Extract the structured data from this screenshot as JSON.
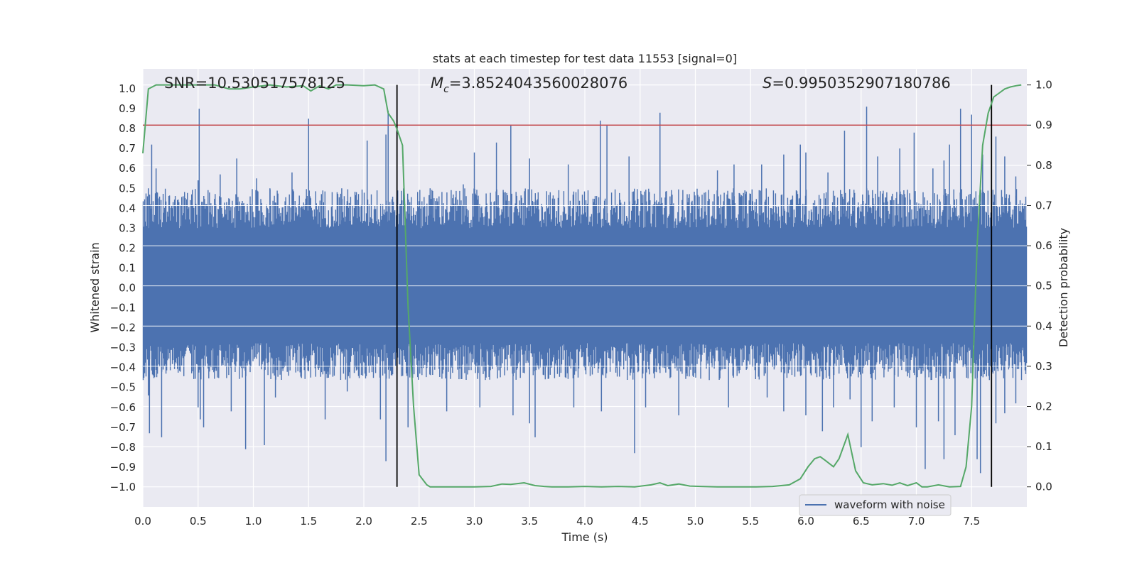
{
  "chart_data": {
    "type": "line",
    "title": "stats at each timestep for test data 11553 [signal=0]",
    "xlabel": "Time (s)",
    "ylabel": "Whitened strain",
    "ylabel_right": "Detection probability",
    "xlim": [
      0.0,
      8.0
    ],
    "ylim": [
      -1.1,
      1.1
    ],
    "ylim_right": [
      -0.05,
      1.04
    ],
    "x_ticks": [
      0.0,
      0.5,
      1.0,
      1.5,
      2.0,
      2.5,
      3.0,
      3.5,
      4.0,
      4.5,
      5.0,
      5.5,
      6.0,
      6.5,
      7.0,
      7.5
    ],
    "x_tick_labels": [
      "0.0",
      "0.5",
      "1.0",
      "1.5",
      "2.0",
      "2.5",
      "3.0",
      "3.5",
      "4.0",
      "4.5",
      "5.0",
      "5.5",
      "6.0",
      "6.5",
      "7.0",
      "7.5"
    ],
    "y_ticks": [
      1.0,
      0.9,
      0.8,
      0.7,
      0.6,
      0.5,
      0.4,
      0.3,
      0.2,
      0.1,
      0.0,
      -0.1,
      -0.2,
      -0.3,
      -0.4,
      -0.5,
      -0.6,
      -0.7,
      -0.8,
      -0.9,
      -1.0
    ],
    "y_tick_labels": [
      "1.0",
      "0.9",
      "0.8",
      "0.7",
      "0.6",
      "0.5",
      "0.4",
      "0.3",
      "0.2",
      "0.1",
      "0.0",
      "−0.1",
      "−0.2",
      "−0.3",
      "−0.4",
      "−0.5",
      "−0.6",
      "−0.7",
      "−0.8",
      "−0.9",
      "−1.0"
    ],
    "y2_ticks": [
      1.0,
      0.9,
      0.8,
      0.7,
      0.6,
      0.5,
      0.4,
      0.3,
      0.2,
      0.1,
      0.0
    ],
    "y2_tick_labels": [
      "1.0",
      "0.9",
      "0.8",
      "0.7",
      "0.6",
      "0.5",
      "0.4",
      "0.3",
      "0.2",
      "0.1",
      "0.0"
    ],
    "threshold": 0.9,
    "vlines": [
      2.3,
      7.68
    ],
    "annotations": {
      "snr": "SNR=10.530517578125",
      "mc_symbol": "M",
      "mc_sub": "c",
      "mc_value": "=3.8524043560028076",
      "s_symbol": "S",
      "s_value": "=0.9950352907180786"
    },
    "legend": {
      "label": "waveform with noise",
      "location": "lower-right"
    },
    "waveform": {
      "name": "waveform with noise",
      "color": "#4c72b0",
      "envelope_top_rms": 0.4,
      "envelope_bottom_rms": -0.37,
      "spikes_top": [
        [
          0.05,
          0.5
        ],
        [
          0.08,
          0.72
        ],
        [
          0.12,
          0.6
        ],
        [
          0.36,
          0.25
        ],
        [
          0.5,
          0.54
        ],
        [
          0.51,
          0.9
        ],
        [
          0.7,
          0.57
        ],
        [
          0.85,
          0.65
        ],
        [
          1.03,
          0.55
        ],
        [
          1.15,
          0.5
        ],
        [
          1.35,
          0.58
        ],
        [
          1.5,
          0.85
        ],
        [
          1.8,
          0.5
        ],
        [
          2.03,
          0.74
        ],
        [
          2.2,
          0.77
        ],
        [
          2.22,
          0.89
        ],
        [
          2.6,
          0.5
        ],
        [
          2.9,
          0.52
        ],
        [
          3.0,
          0.68
        ],
        [
          3.2,
          0.73
        ],
        [
          3.33,
          0.82
        ],
        [
          3.5,
          0.65
        ],
        [
          3.85,
          0.62
        ],
        [
          4.14,
          0.84
        ],
        [
          4.2,
          0.82
        ],
        [
          4.4,
          0.66
        ],
        [
          4.68,
          0.88
        ],
        [
          5.2,
          0.59
        ],
        [
          5.35,
          0.62
        ],
        [
          5.6,
          0.62
        ],
        [
          5.8,
          0.67
        ],
        [
          5.95,
          0.72
        ],
        [
          6.0,
          0.68
        ],
        [
          6.2,
          0.58
        ],
        [
          6.35,
          0.79
        ],
        [
          6.55,
          0.91
        ],
        [
          6.65,
          0.66
        ],
        [
          6.85,
          0.7
        ],
        [
          6.98,
          0.78
        ],
        [
          7.15,
          0.6
        ],
        [
          7.25,
          0.64
        ],
        [
          7.3,
          0.72
        ],
        [
          7.4,
          0.9
        ],
        [
          7.5,
          0.87
        ],
        [
          7.6,
          0.67
        ],
        [
          7.72,
          0.76
        ],
        [
          7.8,
          0.66
        ],
        [
          7.9,
          0.56
        ]
      ],
      "spikes_bottom": [
        [
          0.05,
          -0.54
        ],
        [
          0.06,
          -0.73
        ],
        [
          0.17,
          -0.75
        ],
        [
          0.5,
          -0.6
        ],
        [
          0.52,
          -0.66
        ],
        [
          0.55,
          -0.7
        ],
        [
          0.8,
          -0.62
        ],
        [
          0.93,
          -0.81
        ],
        [
          1.1,
          -0.79
        ],
        [
          1.2,
          -0.55
        ],
        [
          1.65,
          -0.66
        ],
        [
          1.85,
          -0.52
        ],
        [
          2.15,
          -0.66
        ],
        [
          2.2,
          -0.87
        ],
        [
          2.4,
          -0.7
        ],
        [
          2.75,
          -0.62
        ],
        [
          3.05,
          -0.6
        ],
        [
          3.35,
          -0.64
        ],
        [
          3.5,
          -0.68
        ],
        [
          3.55,
          -0.75
        ],
        [
          3.9,
          -0.6
        ],
        [
          4.15,
          -0.62
        ],
        [
          4.45,
          -0.83
        ],
        [
          4.55,
          -0.6
        ],
        [
          4.85,
          -0.64
        ],
        [
          5.3,
          -0.6
        ],
        [
          5.65,
          -0.55
        ],
        [
          5.8,
          -0.62
        ],
        [
          6.0,
          -0.64
        ],
        [
          6.15,
          -0.72
        ],
        [
          6.25,
          -0.6
        ],
        [
          6.4,
          -0.56
        ],
        [
          6.5,
          -0.8
        ],
        [
          6.6,
          -0.67
        ],
        [
          6.8,
          -0.6
        ],
        [
          7.0,
          -0.7
        ],
        [
          7.08,
          -0.91
        ],
        [
          7.2,
          -0.67
        ],
        [
          7.25,
          -0.86
        ],
        [
          7.35,
          -0.74
        ],
        [
          7.55,
          -0.86
        ],
        [
          7.58,
          -0.93
        ],
        [
          7.72,
          -0.68
        ],
        [
          7.8,
          -0.63
        ],
        [
          7.9,
          -0.58
        ]
      ]
    },
    "series": [
      {
        "name": "detection probability",
        "color": "#55a868",
        "axis": "right",
        "x": [
          0.0,
          0.05,
          0.12,
          0.2,
          0.35,
          0.5,
          0.65,
          0.78,
          0.88,
          1.0,
          1.15,
          1.3,
          1.45,
          1.52,
          1.6,
          1.68,
          1.75,
          1.85,
          2.0,
          2.1,
          2.18,
          2.22,
          2.27,
          2.3,
          2.35,
          2.4,
          2.45,
          2.5,
          2.57,
          2.6,
          2.7,
          2.8,
          3.0,
          3.15,
          3.25,
          3.33,
          3.45,
          3.55,
          3.63,
          3.7,
          3.85,
          4.0,
          4.15,
          4.3,
          4.45,
          4.6,
          4.68,
          4.75,
          4.85,
          4.95,
          5.05,
          5.2,
          5.4,
          5.55,
          5.7,
          5.85,
          5.95,
          6.02,
          6.08,
          6.13,
          6.18,
          6.25,
          6.3,
          6.38,
          6.45,
          6.52,
          6.6,
          6.7,
          6.78,
          6.85,
          6.92,
          7.0,
          7.05,
          7.1,
          7.2,
          7.3,
          7.4,
          7.45,
          7.5,
          7.55,
          7.6,
          7.65,
          7.7,
          7.75,
          7.8,
          7.85,
          7.9,
          7.95
        ],
        "y": [
          0.83,
          0.99,
          1.0,
          1.0,
          1.0,
          1.0,
          1.0,
          0.99,
          0.99,
          0.995,
          1.0,
          0.995,
          0.998,
          0.985,
          0.998,
          0.99,
          1.0,
          1.0,
          0.998,
          1.0,
          0.99,
          0.93,
          0.91,
          0.89,
          0.85,
          0.45,
          0.2,
          0.03,
          0.005,
          0.0,
          0.0,
          0.0,
          0.0,
          0.001,
          0.007,
          0.006,
          0.01,
          0.003,
          0.001,
          0.0,
          0.0,
          0.001,
          0.0,
          0.001,
          0.0,
          0.005,
          0.01,
          0.003,
          0.007,
          0.002,
          0.001,
          0.0,
          0.0,
          0.0,
          0.001,
          0.005,
          0.02,
          0.05,
          0.07,
          0.075,
          0.065,
          0.05,
          0.07,
          0.13,
          0.04,
          0.01,
          0.005,
          0.008,
          0.004,
          0.01,
          0.003,
          0.01,
          0.0,
          0.0,
          0.005,
          0.0,
          0.001,
          0.05,
          0.2,
          0.6,
          0.85,
          0.93,
          0.97,
          0.98,
          0.99,
          0.995,
          0.998,
          1.0
        ]
      }
    ]
  },
  "colors": {
    "plot_bg": "#eaeaf2",
    "grid": "#ffffff",
    "waveform": "#4c72b0",
    "probability": "#55a868",
    "threshold": "#c44e52",
    "vline": "#000000"
  }
}
